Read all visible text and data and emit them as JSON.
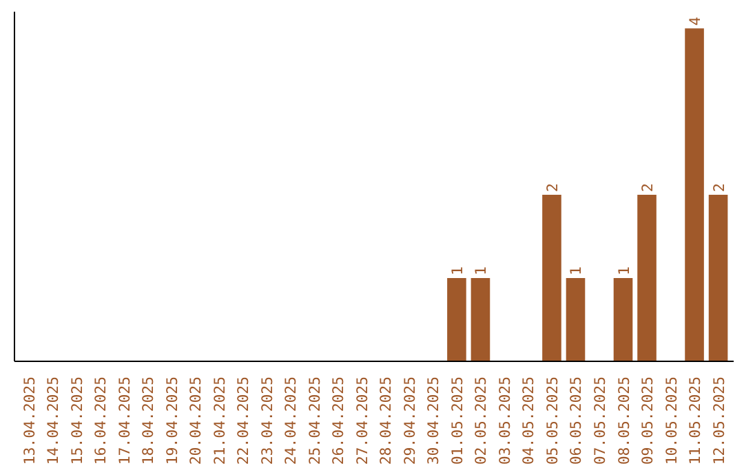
{
  "chart_data": {
    "type": "bar",
    "categories": [
      "13.04.2025",
      "14.04.2025",
      "15.04.2025",
      "16.04.2025",
      "17.04.2025",
      "18.04.2025",
      "19.04.2025",
      "20.04.2025",
      "21.04.2025",
      "22.04.2025",
      "23.04.2025",
      "24.04.2025",
      "25.04.2025",
      "26.04.2025",
      "27.04.2025",
      "28.04.2025",
      "29.04.2025",
      "30.04.2025",
      "01.05.2025",
      "02.05.2025",
      "03.05.2025",
      "04.05.2025",
      "05.05.2025",
      "06.05.2025",
      "07.05.2025",
      "08.05.2025",
      "09.05.2025",
      "10.05.2025",
      "11.05.2025",
      "12.05.2025"
    ],
    "values": [
      null,
      null,
      null,
      null,
      null,
      null,
      null,
      null,
      null,
      null,
      null,
      null,
      null,
      null,
      null,
      null,
      null,
      null,
      1,
      1,
      null,
      null,
      2,
      1,
      null,
      1,
      2,
      null,
      4,
      2
    ],
    "data_labels": true,
    "color": "#a0592a",
    "grid": false
  }
}
